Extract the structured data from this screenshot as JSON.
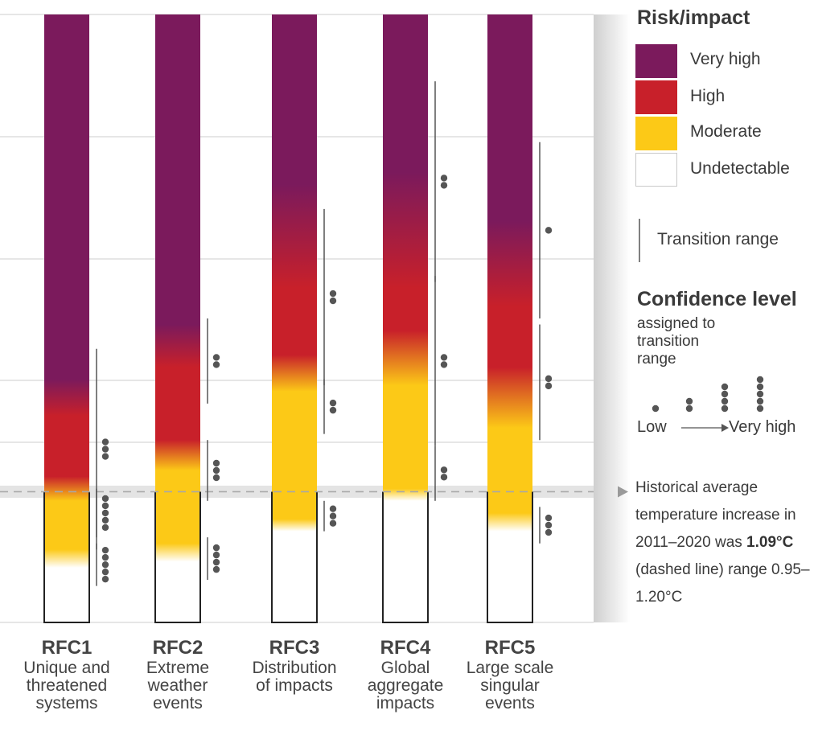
{
  "chart_data": {
    "type": "bar",
    "categories": [
      "RFC1",
      "RFC2",
      "RFC3",
      "RFC4",
      "RFC5"
    ],
    "descriptions": [
      "Unique and\nthreatened\nsystems",
      "Extreme\nweather\nevents",
      "Distribution\nof impacts",
      "Global\naggregate\nimpacts",
      "Large scale\nsingular\nevents"
    ],
    "colors": {
      "very_high": "#7b1a5c",
      "high": "#c8202a",
      "moderate": "#fcc917",
      "undetectable": "#ffffff",
      "gridline": "#d8d8d8",
      "historical_band": "#e4e4e4",
      "text": "#3a3a3a"
    },
    "historical_line": 0.215,
    "historical_band": [
      0.205,
      0.225
    ],
    "columns": [
      {
        "stops": [
          [
            0.09,
            "undetectable"
          ],
          [
            0.12,
            "moderate"
          ],
          [
            0.2,
            "moderate"
          ],
          [
            0.24,
            "high"
          ],
          [
            0.34,
            "high"
          ],
          [
            0.4,
            "very_high"
          ],
          [
            1.0,
            "very_high"
          ]
        ],
        "transitions": [
          {
            "range": [
              0.45,
              0.12
            ],
            "dots": 3
          },
          {
            "range": [
              0.22,
              0.14
            ],
            "dots": 5
          },
          {
            "range": [
              0.13,
              0.06
            ],
            "dots": 5
          }
        ]
      },
      {
        "stops": [
          [
            0.1,
            "undetectable"
          ],
          [
            0.13,
            "moderate"
          ],
          [
            0.25,
            "moderate"
          ],
          [
            0.3,
            "high"
          ],
          [
            0.42,
            "high"
          ],
          [
            0.49,
            "very_high"
          ],
          [
            1.0,
            "very_high"
          ]
        ],
        "transitions": [
          {
            "range": [
              0.5,
              0.36
            ],
            "dots": 2
          },
          {
            "range": [
              0.3,
              0.2
            ],
            "dots": 3
          },
          {
            "range": [
              0.14,
              0.07
            ],
            "dots": 4
          }
        ]
      },
      {
        "stops": [
          [
            0.15,
            "undetectable"
          ],
          [
            0.17,
            "moderate"
          ],
          [
            0.38,
            "moderate"
          ],
          [
            0.44,
            "high"
          ],
          [
            0.55,
            "high"
          ],
          [
            0.72,
            "very_high"
          ],
          [
            1.0,
            "very_high"
          ]
        ],
        "transitions": [
          {
            "range": [
              0.68,
              0.39
            ],
            "dots": 2
          },
          {
            "range": [
              0.4,
              0.31
            ],
            "dots": 2
          },
          {
            "range": [
              0.2,
              0.15
            ],
            "dots": 3
          }
        ]
      },
      {
        "stops": [
          [
            0.2,
            "undetectable"
          ],
          [
            0.22,
            "moderate"
          ],
          [
            0.39,
            "moderate"
          ],
          [
            0.48,
            "high"
          ],
          [
            0.55,
            "high"
          ],
          [
            0.74,
            "very_high"
          ],
          [
            1.0,
            "very_high"
          ]
        ],
        "transitions": [
          {
            "range": [
              0.89,
              0.56
            ],
            "dots": 2
          },
          {
            "range": [
              0.57,
              0.29
            ],
            "dots": 2
          },
          {
            "range": [
              0.29,
              0.2
            ],
            "dots": 2
          }
        ]
      },
      {
        "stops": [
          [
            0.15,
            "undetectable"
          ],
          [
            0.18,
            "moderate"
          ],
          [
            0.32,
            "moderate"
          ],
          [
            0.42,
            "high"
          ],
          [
            0.52,
            "high"
          ],
          [
            0.66,
            "very_high"
          ],
          [
            1.0,
            "very_high"
          ]
        ],
        "transitions": [
          {
            "range": [
              0.79,
              0.5
            ],
            "dots": 1
          },
          {
            "range": [
              0.49,
              0.3
            ],
            "dots": 2
          },
          {
            "range": [
              0.19,
              0.13
            ],
            "dots": 3
          }
        ]
      }
    ]
  },
  "legend": {
    "risk_title": "Risk/impact",
    "levels": [
      {
        "key": "very_high",
        "label": "Very high"
      },
      {
        "key": "high",
        "label": "High"
      },
      {
        "key": "moderate",
        "label": "Moderate"
      },
      {
        "key": "undetectable",
        "label": "Undetectable"
      }
    ],
    "transition_label": "Transition range",
    "confidence_title": "Confidence level",
    "confidence_subtitle": "assigned to transition range",
    "confidence_low": "Low",
    "confidence_high": "Very high",
    "historical_note_prefix": "Historical average temperature increase in 2011–2020 was",
    "historical_value": "1.09°C",
    "historical_note_suffix": "(dashed line) range 0.95–1.20°C"
  }
}
